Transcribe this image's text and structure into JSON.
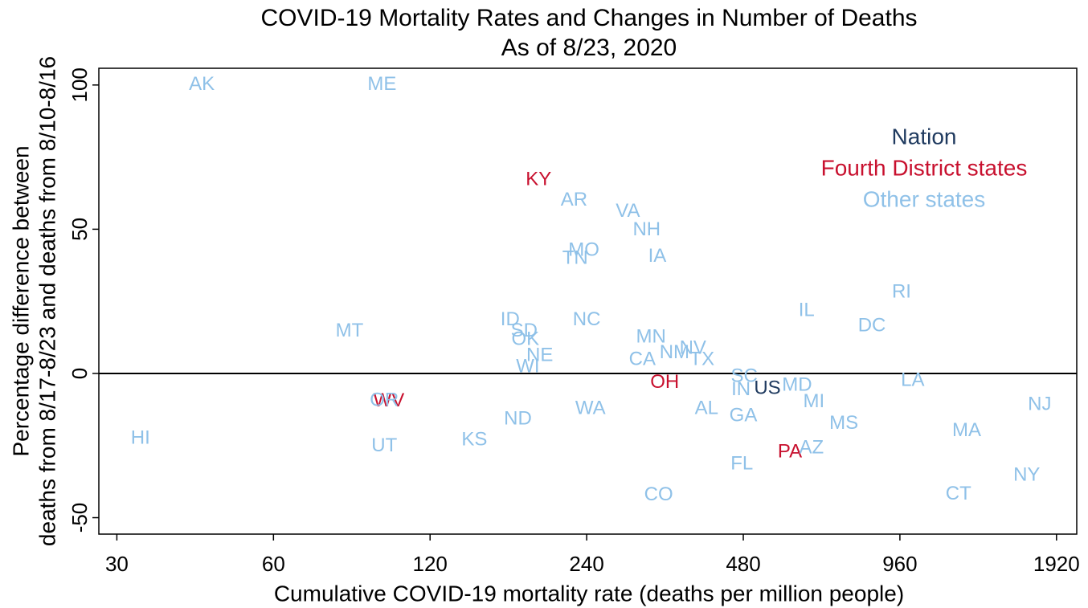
{
  "chart_data": {
    "type": "scatter",
    "title": "COVID-19 Mortality Rates and Changes in Number of Deaths",
    "subtitle": "As of 8/23, 2020",
    "xlabel": "Cumulative COVID-19 mortality rate (deaths per million people)",
    "ylabel": [
      "Percentage difference between",
      "deaths from 8/17-8/23 and deaths from 8/10-8/16"
    ],
    "xscale": "log",
    "xlim": [
      27.7,
      2100
    ],
    "xticks": [
      30,
      60,
      120,
      240,
      480,
      960,
      1920
    ],
    "ylim": [
      -55.7,
      105.8
    ],
    "yticks": [
      -50,
      0,
      50,
      100
    ],
    "reference_line": 0,
    "legend": "upper right",
    "series": [
      {
        "name": "Nation",
        "color": "#1f3a5f",
        "labels": [
          "US"
        ],
        "x": [
          534
        ],
        "values": [
          -5.3
        ]
      },
      {
        "name": "Fourth District states",
        "color": "#c8102e",
        "labels": [
          "KY",
          "OH",
          "WV",
          "PA"
        ],
        "x": [
          194,
          339,
          100,
          590
        ],
        "values": [
          67,
          -3.3,
          -9.7,
          -27.3
        ]
      },
      {
        "name": "Other states",
        "color": "#8fc1e8",
        "labels": [
          "AK",
          "ME",
          "AR",
          "VA",
          "NH",
          "MO",
          "TN",
          "IA",
          "RI",
          "IL",
          "DC",
          "MT",
          "ID",
          "NC",
          "SD",
          "OK",
          "MN",
          "NV",
          "NM",
          "TX",
          "CA",
          "NE",
          "WI",
          "SC",
          "IN",
          "MD",
          "LA",
          "OR",
          "MI",
          "NJ",
          "WA",
          "AL",
          "GA",
          "ND",
          "MS",
          "MA",
          "HI",
          "KS",
          "UT",
          "AZ",
          "FL",
          "NY",
          "CT",
          "CO"
        ],
        "x": [
          43.7,
          97,
          227,
          288,
          313,
          237,
          228,
          328,
          967,
          635,
          848,
          84,
          171,
          240,
          182,
          183,
          319,
          384,
          354,
          400,
          307,
          195,
          185,
          482,
          475,
          609,
          1016,
          98,
          656,
          1782,
          244,
          408,
          480,
          177,
          749,
          1290,
          33.3,
          146,
          98,
          649,
          477,
          1683,
          1244,
          330
        ],
        "values": [
          100,
          100,
          60,
          56,
          49.6,
          42.6,
          39.8,
          40.4,
          28.1,
          21.7,
          16.4,
          14.5,
          18.4,
          18.4,
          14.5,
          11.7,
          12.5,
          8.6,
          7,
          4.7,
          4.7,
          6.1,
          2.2,
          -1.1,
          -5.8,
          -4.2,
          -2.5,
          -9.5,
          -10,
          -10.9,
          -12.3,
          -12.3,
          -14.8,
          -15.9,
          -17.5,
          -20,
          -22.6,
          -23.1,
          -25.3,
          -25.9,
          -31.5,
          -35.4,
          -42,
          -42.3
        ]
      }
    ]
  }
}
